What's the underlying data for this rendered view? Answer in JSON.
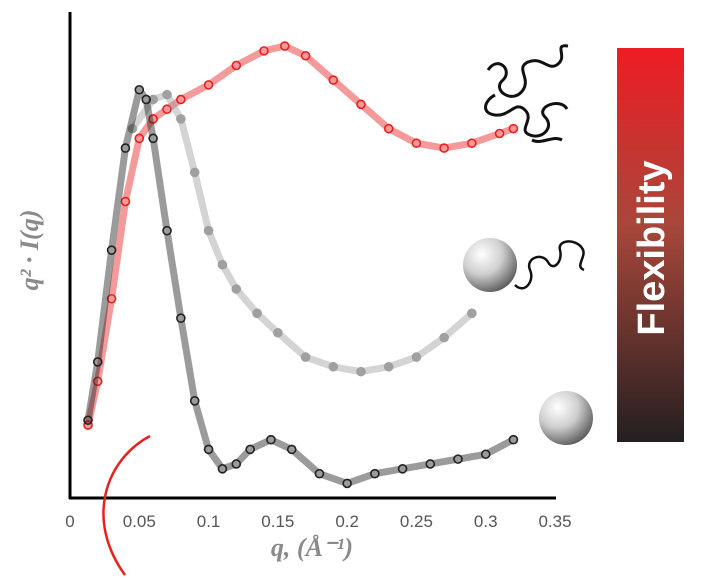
{
  "chart_data": {
    "type": "scatter",
    "x_label": "q, (Å⁻¹)",
    "y_label": "q² · I(q)",
    "side_label": "Flexibility",
    "xlim": [
      0,
      0.35
    ],
    "xticks": [
      0,
      0.05,
      0.1,
      0.15,
      0.2,
      0.25,
      0.3,
      0.35
    ],
    "ylim": [
      0,
      1
    ],
    "series": [
      {
        "color": "#e8201e",
        "filled": false,
        "x": [
          0.013,
          0.02,
          0.03,
          0.04,
          0.05,
          0.06,
          0.07,
          0.08,
          0.1,
          0.12,
          0.14,
          0.155,
          0.17,
          0.19,
          0.21,
          0.23,
          0.25,
          0.27,
          0.29,
          0.31,
          0.32
        ],
        "values": [
          0.15,
          0.24,
          0.41,
          0.61,
          0.74,
          0.78,
          0.8,
          0.82,
          0.85,
          0.89,
          0.92,
          0.93,
          0.91,
          0.86,
          0.81,
          0.76,
          0.73,
          0.72,
          0.73,
          0.75,
          0.76
        ]
      },
      {
        "color": "#a0a0a0",
        "filled": true,
        "x": [
          0.045,
          0.06,
          0.07,
          0.08,
          0.09,
          0.1,
          0.11,
          0.12,
          0.135,
          0.15,
          0.17,
          0.19,
          0.21,
          0.23,
          0.25,
          0.27,
          0.29
        ],
        "values": [
          0.76,
          0.82,
          0.83,
          0.78,
          0.67,
          0.55,
          0.48,
          0.43,
          0.38,
          0.34,
          0.29,
          0.27,
          0.26,
          0.27,
          0.29,
          0.33,
          0.38
        ]
      },
      {
        "color": "#222222",
        "filled": false,
        "x": [
          0.013,
          0.02,
          0.03,
          0.04,
          0.05,
          0.055,
          0.06,
          0.07,
          0.08,
          0.09,
          0.1,
          0.11,
          0.12,
          0.13,
          0.145,
          0.16,
          0.18,
          0.2,
          0.22,
          0.24,
          0.26,
          0.28,
          0.3,
          0.32
        ],
        "values": [
          0.16,
          0.28,
          0.51,
          0.72,
          0.84,
          0.82,
          0.74,
          0.55,
          0.37,
          0.2,
          0.1,
          0.06,
          0.07,
          0.1,
          0.12,
          0.1,
          0.05,
          0.03,
          0.05,
          0.06,
          0.07,
          0.08,
          0.09,
          0.12
        ]
      }
    ]
  }
}
